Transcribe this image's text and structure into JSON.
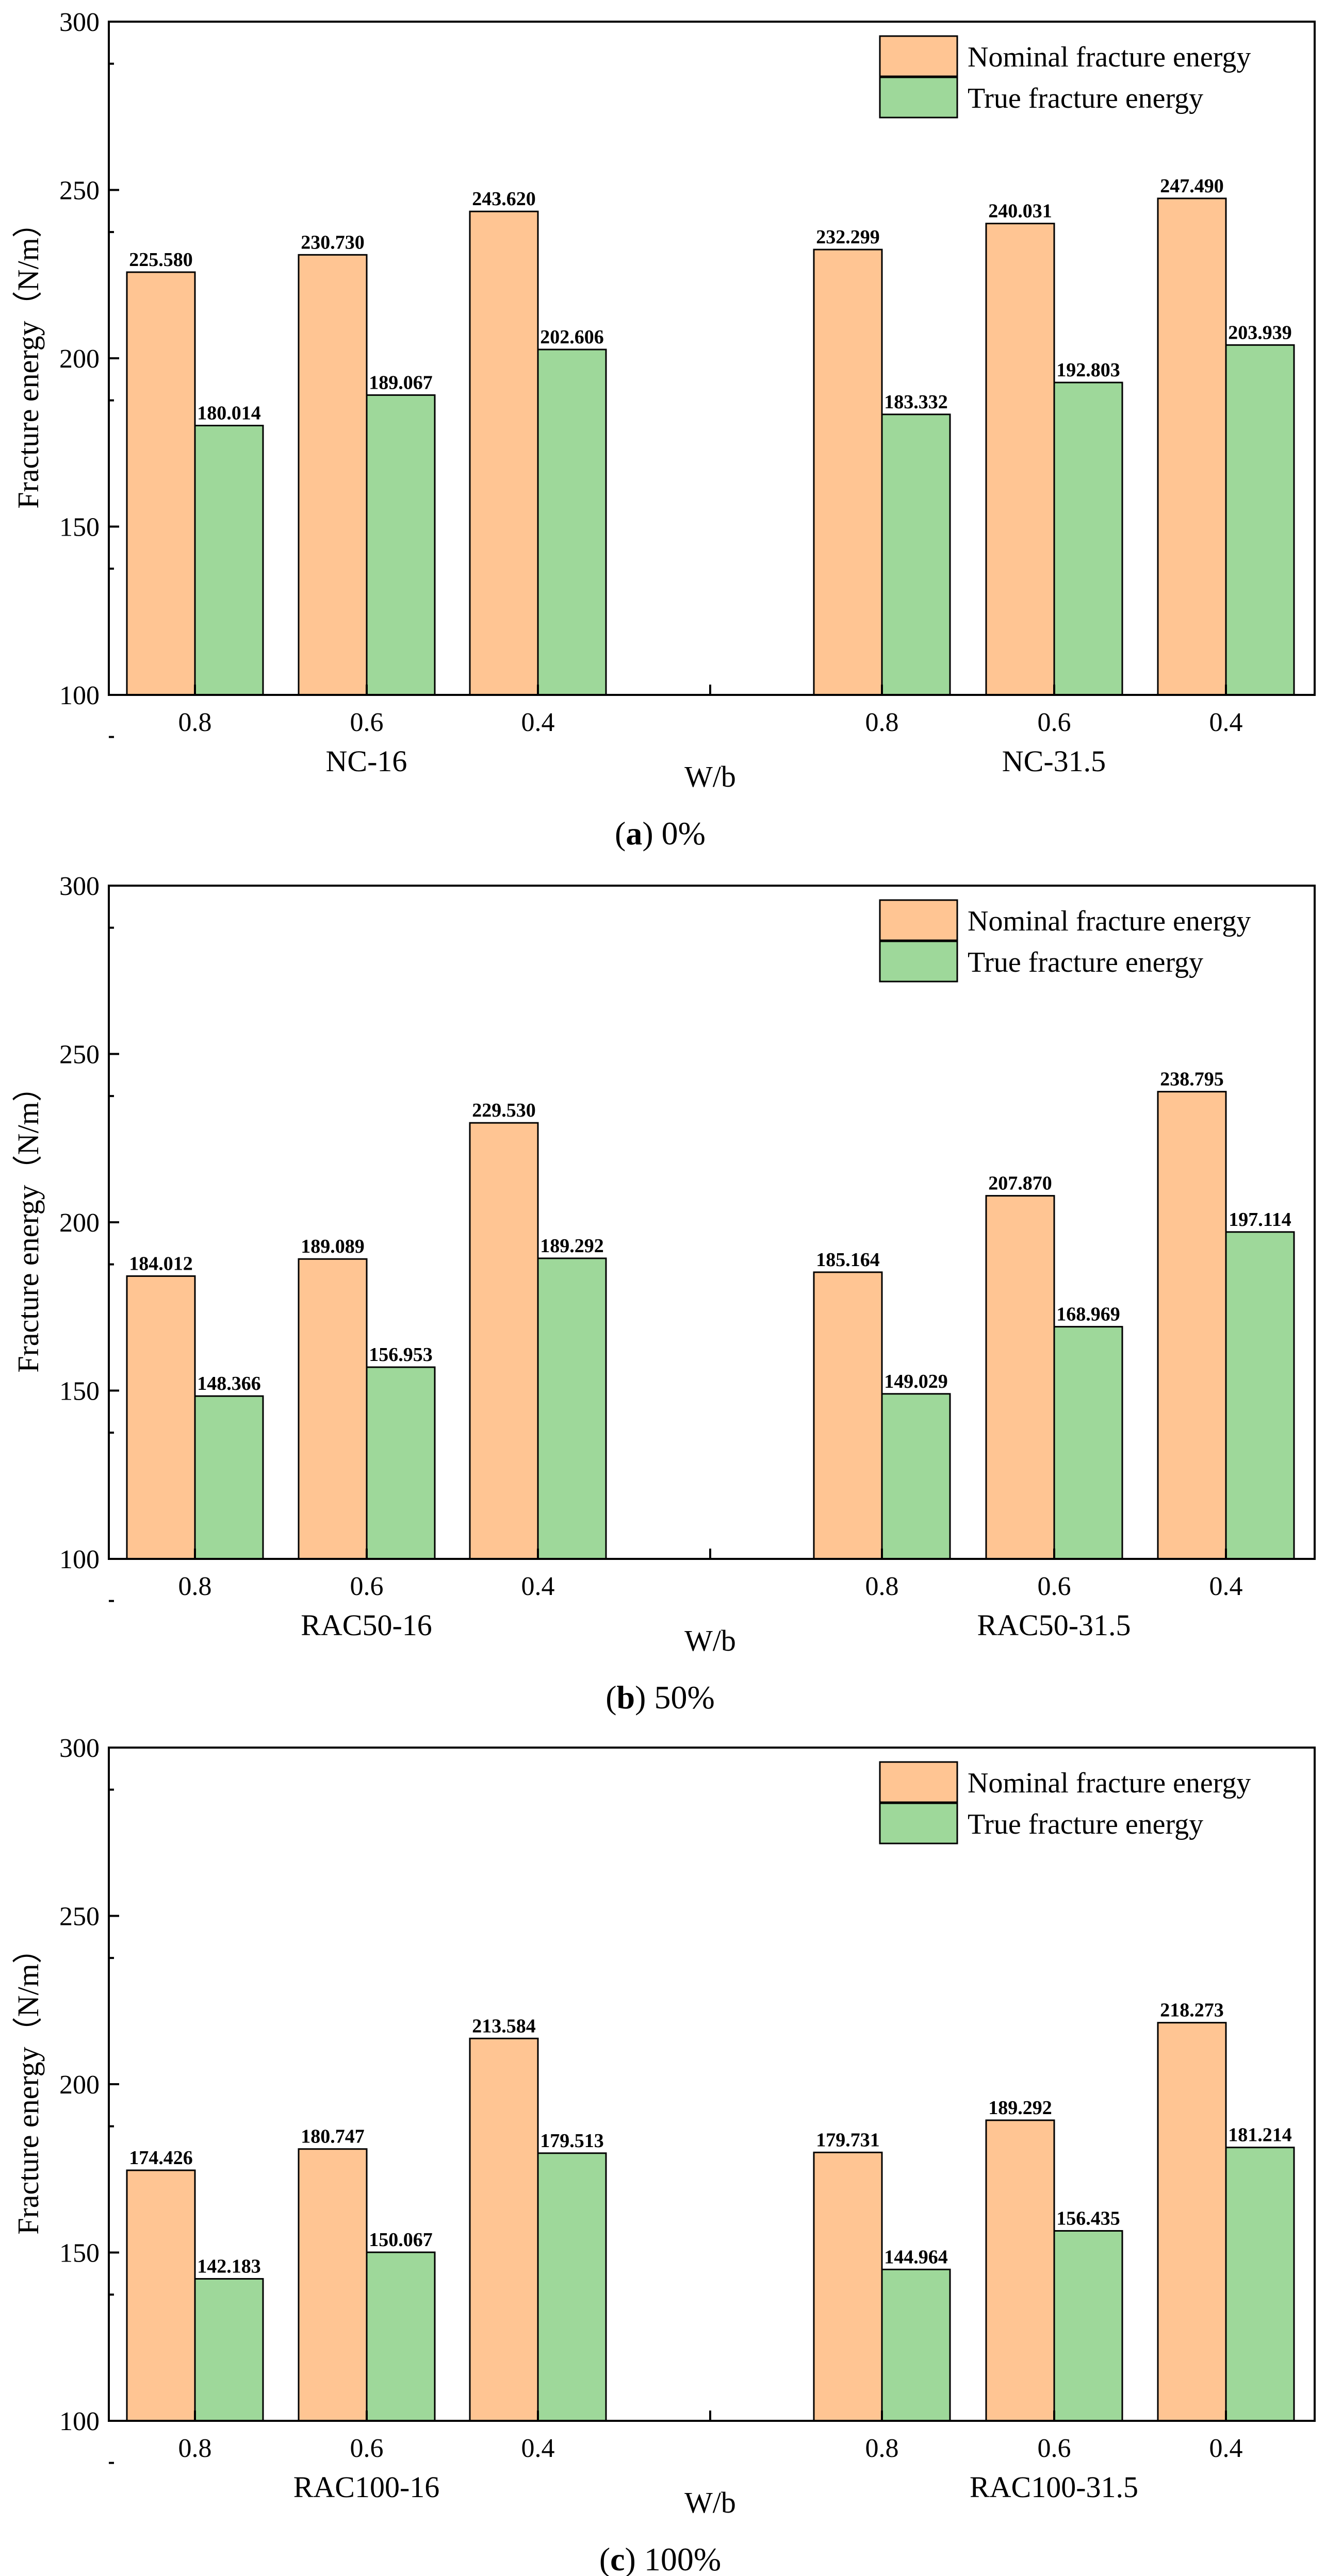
{
  "colors": {
    "nominal": "#FFC593",
    "true": "#9ED89A",
    "axis": "#000000"
  },
  "chart_data": [
    {
      "type": "bar",
      "caption_prefix": "(",
      "caption_letter": "a",
      "caption_suffix": ") 0%",
      "ylabel": "Fracture energy（N/m）",
      "xlabel": "W/b",
      "ylim": [
        100,
        300
      ],
      "yticks": [
        100,
        150,
        200,
        250,
        300
      ],
      "groups": [
        {
          "label": "NC-16",
          "categories": [
            "0.8",
            "0.6",
            "0.4"
          ]
        },
        {
          "label": "NC-31.5",
          "categories": [
            "0.8",
            "0.6",
            "0.4"
          ]
        }
      ],
      "series": [
        {
          "name": "Nominal fracture energy",
          "key": "nominal",
          "values": [
            225.58,
            230.73,
            243.62,
            232.299,
            240.031,
            247.49
          ],
          "labels": [
            "225.580",
            "230.730",
            "243.620",
            "232.299",
            "240.031",
            "247.490"
          ]
        },
        {
          "name": "True fracture energy",
          "key": "true",
          "values": [
            180.014,
            189.067,
            202.606,
            183.332,
            192.803,
            203.939
          ],
          "labels": [
            "180.014",
            "189.067",
            "202.606",
            "183.332",
            "192.803",
            "203.939"
          ]
        }
      ],
      "legend_position": "top-right"
    },
    {
      "type": "bar",
      "caption_prefix": "(",
      "caption_letter": "b",
      "caption_suffix": ") 50%",
      "ylabel": "Fracture energy（N/m）",
      "xlabel": "W/b",
      "ylim": [
        100,
        300
      ],
      "yticks": [
        100,
        150,
        200,
        250,
        300
      ],
      "groups": [
        {
          "label": "RAC50-16",
          "categories": [
            "0.8",
            "0.6",
            "0.4"
          ]
        },
        {
          "label": "RAC50-31.5",
          "categories": [
            "0.8",
            "0.6",
            "0.4"
          ]
        }
      ],
      "series": [
        {
          "name": "Nominal fracture energy",
          "key": "nominal",
          "values": [
            184.012,
            189.089,
            229.53,
            185.164,
            207.87,
            238.795
          ],
          "labels": [
            "184.012",
            "189.089",
            "229.530",
            "185.164",
            "207.870",
            "238.795"
          ]
        },
        {
          "name": "True fracture energy",
          "key": "true",
          "values": [
            148.366,
            156.953,
            189.292,
            149.029,
            168.969,
            197.114
          ],
          "labels": [
            "148.366",
            "156.953",
            "189.292",
            "149.029",
            "168.969",
            "197.114"
          ]
        }
      ],
      "legend_position": "top-right"
    },
    {
      "type": "bar",
      "caption_prefix": "(",
      "caption_letter": "c",
      "caption_suffix": ") 100%",
      "ylabel": "Fracture energy（N/m）",
      "xlabel": "W/b",
      "ylim": [
        100,
        300
      ],
      "yticks": [
        100,
        150,
        200,
        250,
        300
      ],
      "groups": [
        {
          "label": "RAC100-16",
          "categories": [
            "0.8",
            "0.6",
            "0.4"
          ]
        },
        {
          "label": "RAC100-31.5",
          "categories": [
            "0.8",
            "0.6",
            "0.4"
          ]
        }
      ],
      "series": [
        {
          "name": "Nominal fracture energy",
          "key": "nominal",
          "values": [
            174.426,
            180.747,
            213.584,
            179.731,
            189.292,
            218.273
          ],
          "labels": [
            "174.426",
            "180.747",
            "213.584",
            "179.731",
            "189.292",
            "218.273"
          ]
        },
        {
          "name": "True fracture energy",
          "key": "true",
          "values": [
            142.183,
            150.067,
            179.513,
            144.964,
            156.435,
            181.214
          ],
          "labels": [
            "142.183",
            "150.067",
            "179.513",
            "144.964",
            "156.435",
            "181.214"
          ]
        }
      ],
      "legend_position": "top-right"
    }
  ]
}
